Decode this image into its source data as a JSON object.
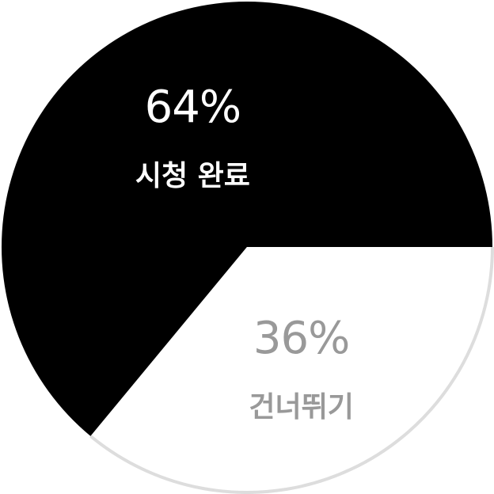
{
  "chart_data": {
    "type": "pie",
    "start_angle_deg": 0,
    "direction": "counterclockwise",
    "slices": [
      {
        "label": "시청 완료",
        "value": 64,
        "value_label": "64%",
        "fill": "#000000",
        "text_color": "#ffffff"
      },
      {
        "label": "건너뛰기",
        "value": 36,
        "value_label": "36%",
        "fill": "#ffffff",
        "text_color": "#999999",
        "outline": "#dddddd"
      }
    ]
  }
}
